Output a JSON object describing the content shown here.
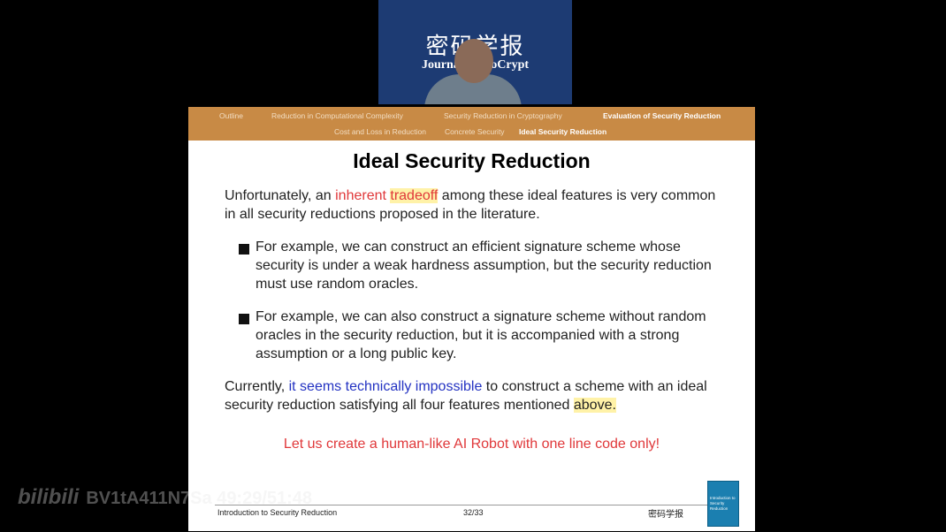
{
  "webcam": {
    "logo_calligraphy": "密码学报",
    "journal_text": "Journal of WoCrypt"
  },
  "nav": {
    "row1": [
      {
        "label": "Outline",
        "active": false
      },
      {
        "label": "Reduction in Computational Complexity",
        "active": false
      },
      {
        "label": "Security Reduction in Cryptography",
        "active": false
      },
      {
        "label": "Evaluation of Security Reduction",
        "active": true
      }
    ],
    "row2": [
      {
        "label": "Cost and Loss in Reduction",
        "active": false
      },
      {
        "label": "Concrete Security",
        "active": false
      },
      {
        "label": "Ideal Security Reduction",
        "active": true
      }
    ]
  },
  "slide": {
    "title": "Ideal Security Reduction",
    "para1": {
      "t1": "Unfortunately, an ",
      "t2": "inherent ",
      "t3": "tradeoff",
      "t4": " among these ideal features is very common in all security reductions proposed in the literature."
    },
    "bullets": [
      "For example, we can construct an efficient signature scheme whose security is under a weak hardness assumption, but the security reduction must use random oracles.",
      "For example, we can also construct a signature scheme without random oracles in the security reduction, but it is accompanied with a strong assumption or a long public key."
    ],
    "para2": {
      "t1": "Currently, ",
      "t2": "it seems technically impossible",
      "t3": " to construct a scheme with an ideal security reduction satisfying all four features mentioned ",
      "t4": "above."
    },
    "robot_line": "Let us create a human-like AI Robot with one line code only!",
    "footer_left": "Introduction to Security Reduction",
    "footer_page": "32/33",
    "footer_logo": "密码学报",
    "book_title": "Introduction to Security Reduction"
  },
  "watermark": {
    "logo": "bilibili",
    "text": "BV1tA411N7Sa 49:29/51:48"
  },
  "colors": {
    "nav_bg": "#c88a45",
    "red_text": "#e0383a",
    "blue_text": "#2332c2",
    "highlight": "#fff2a8"
  }
}
